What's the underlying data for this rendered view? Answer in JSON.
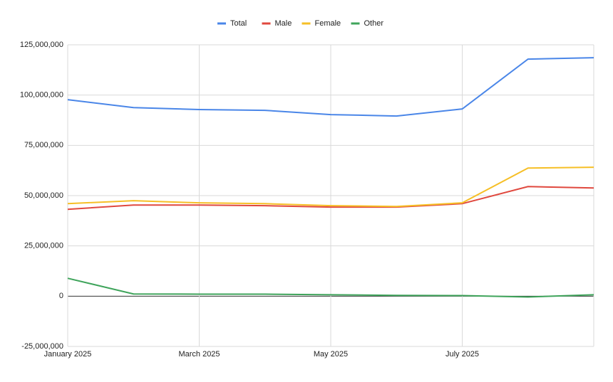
{
  "chart_data": {
    "type": "line",
    "categories": [
      "January 2025",
      null,
      "March 2025",
      null,
      "May 2025",
      null,
      "July 2025",
      null,
      null
    ],
    "series": [
      {
        "name": "Total",
        "color": "#4a86e8",
        "values": [
          97700000,
          93800000,
          92800000,
          92400000,
          90300000,
          89600000,
          93100000,
          117900000,
          118600000
        ]
      },
      {
        "name": "Male",
        "color": "#e0483e",
        "values": [
          43200000,
          45300000,
          45300000,
          45000000,
          44300000,
          44300000,
          46000000,
          54500000,
          53800000
        ]
      },
      {
        "name": "Female",
        "color": "#f6bf26",
        "values": [
          46000000,
          47500000,
          46400000,
          46000000,
          45000000,
          44600000,
          46400000,
          63700000,
          64100000
        ]
      },
      {
        "name": "Other",
        "color": "#3fa45b",
        "values": [
          8900000,
          1100000,
          1000000,
          1000000,
          700000,
          400000,
          300000,
          -400000,
          700000
        ]
      }
    ],
    "ylim": [
      -25000000,
      125000000
    ],
    "yticks": [
      {
        "value": -25000000,
        "label": "-25,000,000"
      },
      0,
      {
        "value": 25000000,
        "label": "25,000,000"
      },
      {
        "value": 50000000,
        "label": "50,000,000"
      },
      {
        "value": 75000000,
        "label": "75,000,000"
      },
      {
        "value": 100000000,
        "label": "100,000,000"
      },
      {
        "value": 125000000,
        "label": "125,000,000"
      }
    ],
    "grid": true,
    "legend": "top"
  }
}
